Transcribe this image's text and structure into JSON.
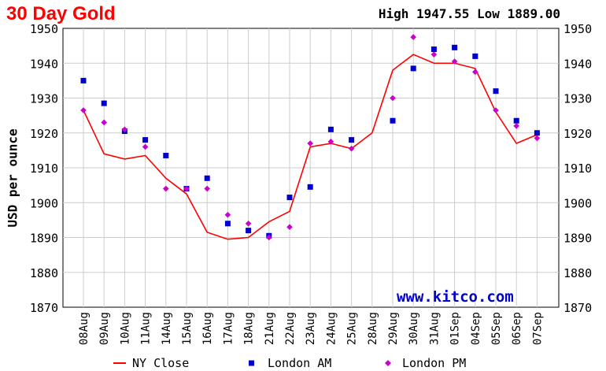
{
  "header": {
    "title": "30 Day Gold",
    "high_low": "High 1947.55 Low 1889.00"
  },
  "watermark": "www.kitco.com",
  "chart_data": {
    "type": "line",
    "title": "30 Day Gold",
    "ylabel": "USD per ounce",
    "xlabel": "",
    "ylim": [
      1870,
      1950
    ],
    "yticks": [
      1870,
      1880,
      1890,
      1900,
      1910,
      1920,
      1930,
      1940,
      1950
    ],
    "grid": true,
    "legend_position": "bottom",
    "categories": [
      "08Aug",
      "09Aug",
      "10Aug",
      "11Aug",
      "14Aug",
      "15Aug",
      "16Aug",
      "17Aug",
      "18Aug",
      "21Aug",
      "22Aug",
      "23Aug",
      "24Aug",
      "25Aug",
      "28Aug",
      "29Aug",
      "30Aug",
      "31Aug",
      "01Sep",
      "04Sep",
      "05Sep",
      "06Sep",
      "07Sep"
    ],
    "series": [
      {
        "name": "NY Close",
        "type": "line",
        "color": "#ff0000",
        "values": [
          1926.5,
          1914.0,
          1912.5,
          1913.5,
          1907.0,
          1902.5,
          1891.5,
          1889.5,
          1890.0,
          1894.5,
          1897.5,
          1916.0,
          1917.0,
          1915.5,
          1920.0,
          1938.0,
          1942.5,
          1940.0,
          1940.0,
          1938.5,
          1926.0,
          1917.0,
          1919.5
        ]
      },
      {
        "name": "London AM",
        "type": "scatter",
        "marker": "square",
        "color": "#0000cc",
        "values": [
          1935.0,
          1928.5,
          1920.5,
          1918.0,
          1913.5,
          1904.0,
          1907.0,
          1894.0,
          1892.0,
          1890.5,
          1901.5,
          1904.5,
          1921.0,
          1918.0,
          null,
          1923.5,
          1938.5,
          1944.0,
          1944.5,
          1942.0,
          1932.0,
          1923.5,
          1920.0
        ]
      },
      {
        "name": "London PM",
        "type": "scatter",
        "marker": "diamond",
        "color": "#cc00cc",
        "values": [
          1926.5,
          1923.0,
          1921.0,
          1916.0,
          1904.0,
          1904.0,
          1904.0,
          1896.5,
          1894.0,
          1890.0,
          1893.0,
          1917.0,
          1917.5,
          1915.5,
          null,
          1930.0,
          1947.5,
          1942.5,
          1940.5,
          1937.5,
          1926.5,
          1922.0,
          1918.5
        ]
      }
    ]
  }
}
